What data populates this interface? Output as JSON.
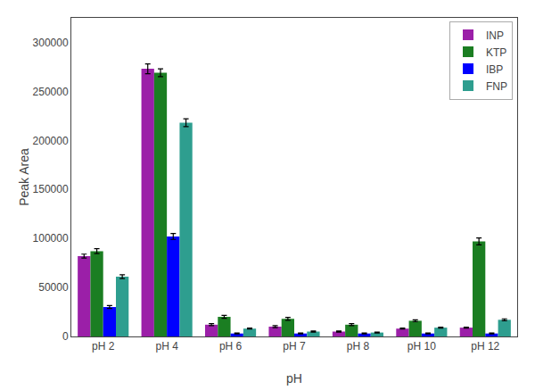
{
  "chart_data": {
    "type": "bar",
    "xlabel": "pH",
    "ylabel": "Peak Area",
    "categories": [
      "pH 2",
      "pH 4",
      "pH 6",
      "pH 7",
      "pH 8",
      "pH 10",
      "pH 12"
    ],
    "series": [
      {
        "name": "INP",
        "color": "#9B1FA8",
        "values": [
          82000,
          273000,
          12000,
          10000,
          5000,
          8000,
          9000
        ],
        "errors": [
          2000,
          5000,
          1000,
          1000,
          500,
          500,
          500
        ]
      },
      {
        "name": "KTP",
        "color": "#1B7E22",
        "values": [
          87000,
          269000,
          20000,
          18000,
          12000,
          16000,
          97000
        ],
        "errors": [
          2500,
          4000,
          1500,
          1500,
          1000,
          1000,
          3500
        ]
      },
      {
        "name": "IBP",
        "color": "#0000FF",
        "values": [
          30000,
          102000,
          3000,
          3000,
          3000,
          3000,
          3000
        ],
        "errors": [
          1500,
          3000,
          500,
          500,
          500,
          500,
          500
        ]
      },
      {
        "name": "FNP",
        "color": "#2E9E8F",
        "values": [
          61000,
          218000,
          8000,
          5000,
          4000,
          9000,
          17000
        ],
        "errors": [
          2000,
          4000,
          500,
          500,
          500,
          500,
          1000
        ]
      }
    ],
    "ylim": [
      0,
      325000
    ],
    "yticks": [
      0,
      50000,
      100000,
      150000,
      200000,
      250000,
      300000
    ],
    "grid": false,
    "legend": "upper right"
  }
}
